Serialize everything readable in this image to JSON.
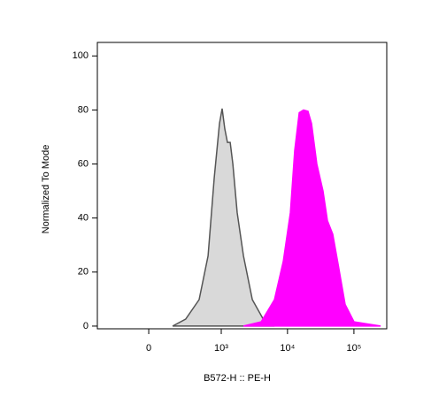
{
  "chart_data": {
    "type": "area",
    "xlabel": "B572-H :: PE-H",
    "ylabel": "Normalized To Mode",
    "xscale": "biexponential",
    "xlim": [
      -470,
      312000
    ],
    "ylim": [
      -1,
      105
    ],
    "xticks": [
      0,
      {
        "value": 1000,
        "label": "10³"
      },
      {
        "value": 10000,
        "label": "10⁴"
      },
      {
        "value": 100000,
        "label": "10⁵"
      }
    ],
    "yticks": [
      0,
      20,
      40,
      60,
      80,
      100
    ],
    "series": [
      {
        "color": "#d9d9d9",
        "stroke": "#555555",
        "x": [
          151,
          271,
          453,
          626,
          781,
          940,
          1033,
          1133,
          1244,
          1366,
          1498,
          1746,
          2168,
          2950,
          4678,
          6357
        ],
        "values": [
          0,
          2.6,
          9.8,
          26,
          55,
          75,
          80.5,
          73,
          68,
          68,
          60,
          42,
          26,
          9.8,
          1,
          0
        ]
      },
      {
        "color": "#ff00ff",
        "stroke": "#ff00ff",
        "x": [
          2168,
          4010,
          6357,
          8640,
          11040,
          12860,
          15000,
          17470,
          20360,
          23010,
          27660,
          34300,
          39940,
          48080,
          57700,
          73840,
          100400,
          252300
        ],
        "values": [
          0,
          1.6,
          9.8,
          24,
          42,
          65,
          79,
          80,
          79.5,
          75,
          60,
          50,
          39,
          34,
          23,
          8,
          1.6,
          0
        ]
      }
    ]
  }
}
